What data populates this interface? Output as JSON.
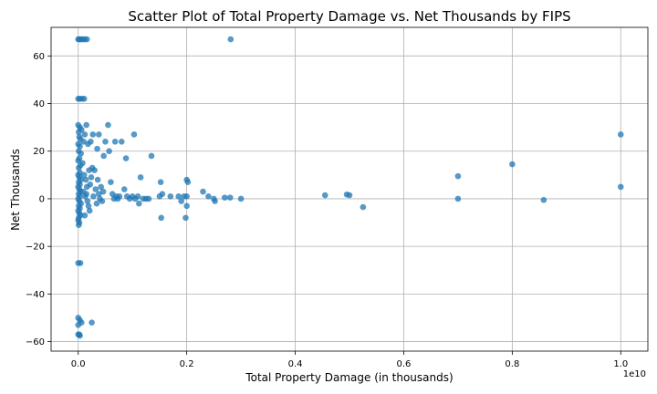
{
  "chart_data": {
    "type": "scatter",
    "title": "Scatter Plot of Total Property Damage vs. Net Thousands by FIPS",
    "xlabel": "Total Property Damage (in thousands)",
    "ylabel": "Net Thousands",
    "x_offset_label": "1e10",
    "x_scale": 10000000000,
    "xlim": [
      -0.05,
      1.05
    ],
    "ylim": [
      -64,
      72
    ],
    "x_ticks": [
      0.0,
      0.2,
      0.4,
      0.6,
      0.8,
      1.0
    ],
    "x_tick_labels": [
      "0.0",
      "0.2",
      "0.4",
      "0.6",
      "0.8",
      "1.0"
    ],
    "y_ticks": [
      -60,
      -40,
      -20,
      0,
      20,
      40,
      60
    ],
    "y_tick_labels": [
      "−60",
      "−40",
      "−20",
      "0",
      "20",
      "40",
      "60"
    ],
    "grid": true,
    "point_color": "#1f77b4",
    "series": [
      {
        "points": [
          [
            0.0,
            67
          ],
          [
            0.002,
            67
          ],
          [
            0.005,
            67
          ],
          [
            0.008,
            67
          ],
          [
            0.012,
            67
          ],
          [
            0.016,
            67
          ],
          [
            0.281,
            67
          ],
          [
            0.0,
            42
          ],
          [
            0.003,
            42
          ],
          [
            0.007,
            42
          ],
          [
            0.011,
            42
          ],
          [
            0.0,
            31
          ],
          [
            0.003,
            30
          ],
          [
            0.006,
            29
          ],
          [
            0.001,
            28
          ],
          [
            0.002,
            26
          ],
          [
            0.004,
            25
          ],
          [
            0.0,
            23
          ],
          [
            0.003,
            22
          ],
          [
            0.001,
            20
          ],
          [
            0.005,
            19
          ],
          [
            0.002,
            17
          ],
          [
            0.0,
            16
          ],
          [
            0.004,
            14
          ],
          [
            0.001,
            13
          ],
          [
            0.003,
            11
          ],
          [
            0.0,
            10
          ],
          [
            0.002,
            9
          ],
          [
            0.005,
            8
          ],
          [
            0.001,
            7
          ],
          [
            0.003,
            6
          ],
          [
            0.0,
            5
          ],
          [
            0.002,
            4
          ],
          [
            0.004,
            3
          ],
          [
            0.001,
            2
          ],
          [
            0.003,
            1
          ],
          [
            0.0,
            0
          ],
          [
            0.002,
            -1
          ],
          [
            0.005,
            -2
          ],
          [
            0.001,
            -3
          ],
          [
            0.003,
            -4
          ],
          [
            0.0,
            -5
          ],
          [
            0.002,
            -6
          ],
          [
            0.004,
            -7
          ],
          [
            0.001,
            -8
          ],
          [
            0.0,
            -9
          ],
          [
            0.002,
            -10
          ],
          [
            0.001,
            -11
          ],
          [
            0.0,
            -27
          ],
          [
            0.004,
            -27
          ],
          [
            0.0,
            -50
          ],
          [
            0.003,
            -51
          ],
          [
            0.006,
            -52
          ],
          [
            0.0,
            -53
          ],
          [
            0.0,
            -57
          ],
          [
            0.002,
            -57
          ],
          [
            0.003,
            -57.5
          ],
          [
            0.025,
            -52
          ],
          [
            0.01,
            24
          ],
          [
            0.012,
            27
          ],
          [
            0.015,
            31
          ],
          [
            0.018,
            23
          ],
          [
            0.02,
            12
          ],
          [
            0.008,
            15
          ],
          [
            0.011,
            10
          ],
          [
            0.014,
            8
          ],
          [
            0.016,
            5
          ],
          [
            0.009,
            3
          ],
          [
            0.013,
            1
          ],
          [
            0.017,
            -1
          ],
          [
            0.019,
            -3
          ],
          [
            0.021,
            -5
          ],
          [
            0.012,
            -7
          ],
          [
            0.015,
            2
          ],
          [
            0.022,
            6
          ],
          [
            0.024,
            9
          ],
          [
            0.026,
            13
          ],
          [
            0.023,
            24
          ],
          [
            0.027,
            27
          ],
          [
            0.03,
            12
          ],
          [
            0.032,
            4
          ],
          [
            0.028,
            1
          ],
          [
            0.034,
            -2
          ],
          [
            0.036,
            8
          ],
          [
            0.038,
            2
          ],
          [
            0.04,
            0
          ],
          [
            0.042,
            5
          ],
          [
            0.044,
            -1
          ],
          [
            0.046,
            3
          ],
          [
            0.035,
            21
          ],
          [
            0.038,
            27
          ],
          [
            0.047,
            18
          ],
          [
            0.05,
            24
          ],
          [
            0.055,
            31
          ],
          [
            0.057,
            20
          ],
          [
            0.06,
            7
          ],
          [
            0.063,
            2
          ],
          [
            0.066,
            0
          ],
          [
            0.07,
            1
          ],
          [
            0.068,
            24
          ],
          [
            0.073,
            0
          ],
          [
            0.076,
            1
          ],
          [
            0.08,
            24
          ],
          [
            0.085,
            4
          ],
          [
            0.088,
            17
          ],
          [
            0.09,
            1
          ],
          [
            0.095,
            0
          ],
          [
            0.1,
            1
          ],
          [
            0.103,
            27
          ],
          [
            0.105,
            0
          ],
          [
            0.11,
            1
          ],
          [
            0.112,
            -2
          ],
          [
            0.115,
            9
          ],
          [
            0.12,
            0
          ],
          [
            0.125,
            0
          ],
          [
            0.13,
            0
          ],
          [
            0.135,
            18
          ],
          [
            0.15,
            1
          ],
          [
            0.152,
            7
          ],
          [
            0.153,
            -8
          ],
          [
            0.155,
            2
          ],
          [
            0.17,
            1
          ],
          [
            0.185,
            1
          ],
          [
            0.19,
            -1
          ],
          [
            0.195,
            1
          ],
          [
            0.198,
            -8
          ],
          [
            0.2,
            8
          ],
          [
            0.2,
            1
          ],
          [
            0.2,
            -3
          ],
          [
            0.202,
            7
          ],
          [
            0.23,
            3
          ],
          [
            0.24,
            1
          ],
          [
            0.25,
            0
          ],
          [
            0.252,
            -1
          ],
          [
            0.27,
            0.5
          ],
          [
            0.28,
            0.5
          ],
          [
            0.3,
            0
          ],
          [
            0.455,
            1.5
          ],
          [
            0.495,
            1.8
          ],
          [
            0.5,
            1.5
          ],
          [
            0.525,
            -3.5
          ],
          [
            0.7,
            9.5
          ],
          [
            0.7,
            0
          ],
          [
            0.8,
            14.5
          ],
          [
            0.858,
            -0.5
          ],
          [
            1.0,
            27
          ],
          [
            1.0,
            5
          ]
        ]
      }
    ]
  }
}
